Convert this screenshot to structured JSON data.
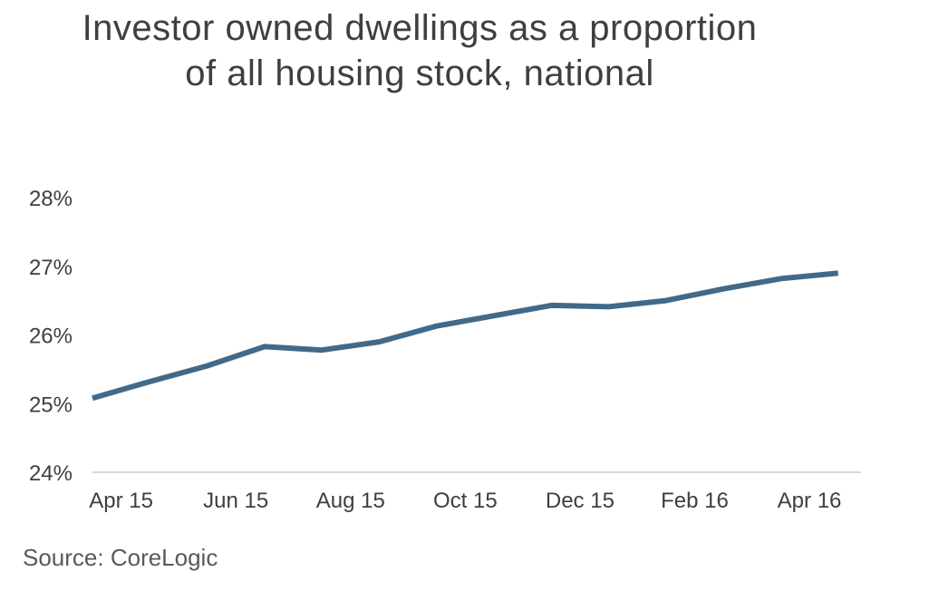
{
  "chart_data": {
    "type": "line",
    "title": [
      "Investor owned dwellings as a proportion",
      "of all housing stock, national"
    ],
    "source": "Source: CoreLogic",
    "x_index": [
      0,
      1,
      2,
      3,
      4,
      5,
      6,
      7,
      8,
      9,
      10,
      11,
      12,
      13
    ],
    "x_tick_labels": [
      "Apr 15",
      "Jun 15",
      "Aug 15",
      "Oct 15",
      "Dec 15",
      "Feb 16",
      "Apr 16"
    ],
    "x_tick_positions": [
      0.5,
      2.5,
      4.5,
      6.5,
      8.5,
      10.5,
      12.5
    ],
    "series": [
      {
        "values": [
          25.08,
          25.32,
          25.55,
          25.83,
          25.78,
          25.9,
          26.13,
          26.28,
          26.43,
          26.41,
          26.5,
          26.67,
          26.82,
          26.9
        ],
        "color": "#416a8a"
      }
    ],
    "y_tick_labels": [
      "24%",
      "25%",
      "26%",
      "27%",
      "28%"
    ],
    "ylim": [
      24,
      28
    ],
    "xlim": [
      0,
      13.4
    ],
    "grid": false
  }
}
